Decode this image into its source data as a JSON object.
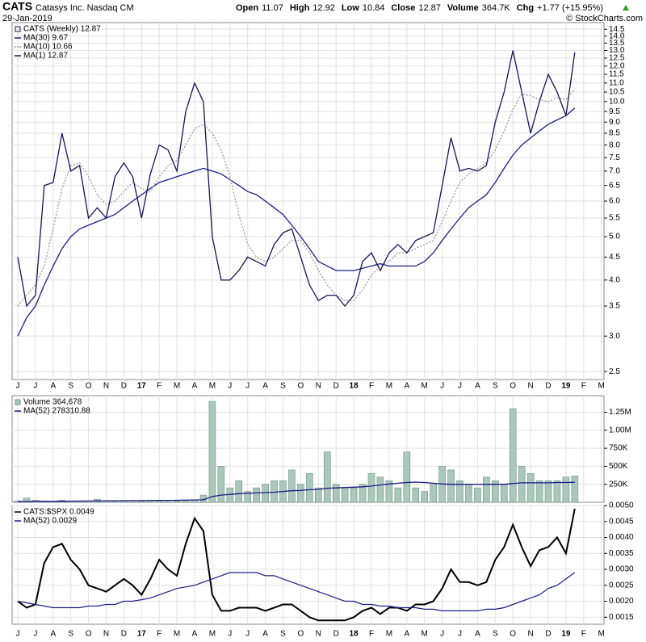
{
  "chart_data": [
    {
      "type": "line",
      "scale": "log",
      "title": "CATS",
      "subtitle": "Catasys Inc. Nasdaq CM",
      "date": "29-Jan-2019",
      "quote": [
        {
          "label": "Open",
          "value": "11.07"
        },
        {
          "label": "High",
          "value": "12.92"
        },
        {
          "label": "Low",
          "value": "10.84"
        },
        {
          "label": "Close",
          "value": "12.87"
        },
        {
          "label": "Volume",
          "value": "364.7K"
        },
        {
          "label": "Chg",
          "value": "+1.77 (+15.95%)"
        }
      ],
      "copyright": "© StockCharts.com",
      "legend_label": "CATS (Weekly) 12.87",
      "categories": [
        "J",
        null,
        "J",
        null,
        "A",
        null,
        "S",
        null,
        "O",
        null,
        "N",
        null,
        "D",
        null,
        "17",
        null,
        "F",
        null,
        "M",
        null,
        "A",
        null,
        "M",
        null,
        "J",
        null,
        "J",
        null,
        "A",
        null,
        "S",
        null,
        "O",
        null,
        "N",
        null,
        "D",
        null,
        "18",
        null,
        "F",
        null,
        "M",
        null,
        "A",
        null,
        "M",
        null,
        "J",
        null,
        "J",
        null,
        "A",
        null,
        "S",
        null,
        "O",
        null,
        "N",
        null,
        "D",
        null,
        "19",
        null,
        "F",
        null,
        "M",
        null
      ],
      "ylim": [
        2.4,
        15
      ],
      "yticks": [
        2.5,
        {
          "value": 3,
          "label": "3.0"
        },
        3.5,
        {
          "value": 4,
          "label": "4.0"
        },
        4.5,
        {
          "value": 5,
          "label": "5.0"
        },
        5.5,
        {
          "value": 6,
          "label": "6.0"
        },
        6.5,
        {
          "value": 7,
          "label": "7.0"
        },
        7.5,
        {
          "value": 8,
          "label": "8.0"
        },
        8.5,
        {
          "value": 9,
          "label": "9.0"
        },
        9.5,
        {
          "value": 10,
          "label": "10.0"
        },
        10.5,
        {
          "value": 11,
          "label": "11.0"
        },
        11.5,
        {
          "value": 12,
          "label": "12.0"
        },
        12.5,
        {
          "value": 13,
          "label": "13.0"
        },
        13.5,
        {
          "value": 14,
          "label": "14.0"
        },
        14.5
      ],
      "grid": true,
      "series": [
        {
          "name": "MA(30) 9.67",
          "color": "#1c1c8a",
          "line_style": "solid",
          "values": [
            3.0,
            3.3,
            3.5,
            3.9,
            4.3,
            4.7,
            5.0,
            5.2,
            5.3,
            5.4,
            5.5,
            5.6,
            5.8,
            6.0,
            6.2,
            6.4,
            6.6,
            6.7,
            6.8,
            6.9,
            7.0,
            7.1,
            7.0,
            6.9,
            6.7,
            6.5,
            6.3,
            6.2,
            6.0,
            5.8,
            5.6,
            5.3,
            5.0,
            4.7,
            4.4,
            4.3,
            4.2,
            4.2,
            4.2,
            4.25,
            4.3,
            4.35,
            4.3,
            4.3,
            4.3,
            4.3,
            4.4,
            4.6,
            4.9,
            5.2,
            5.5,
            5.8,
            6.0,
            6.2,
            6.6,
            7.1,
            7.6,
            8.0,
            8.3,
            8.6,
            8.9,
            9.1,
            9.3,
            9.67,
            null,
            null,
            null,
            null
          ]
        },
        {
          "name": "MA(10) 10.66",
          "color": "#999999",
          "line_style": "dotted",
          "values": [
            3.5,
            3.7,
            3.9,
            4.3,
            5.2,
            6.4,
            7.2,
            7.3,
            6.8,
            6.2,
            5.9,
            6.0,
            6.3,
            6.6,
            6.4,
            6.3,
            6.8,
            7.2,
            7.4,
            8.0,
            8.7,
            8.9,
            8.5,
            7.8,
            6.8,
            5.6,
            4.8,
            4.5,
            4.4,
            4.5,
            4.7,
            4.9,
            4.9,
            4.6,
            4.2,
            3.9,
            3.7,
            3.6,
            3.6,
            3.8,
            4.1,
            4.3,
            4.4,
            4.6,
            4.6,
            4.7,
            4.8,
            4.9,
            5.4,
            6.0,
            6.6,
            6.9,
            7.1,
            7.3,
            7.8,
            8.6,
            9.6,
            10.4,
            10.3,
            10.1,
            10.0,
            10.2,
            10.1,
            10.66,
            null,
            null,
            null,
            null
          ]
        },
        {
          "name": "MA(1) 12.87",
          "color": "#14145c",
          "line_style": "solid",
          "values": [
            4.5,
            3.5,
            3.7,
            6.5,
            6.6,
            8.5,
            7.0,
            7.2,
            5.5,
            5.8,
            5.5,
            6.8,
            7.3,
            6.8,
            5.5,
            6.9,
            8.0,
            7.8,
            7.0,
            9.5,
            11.0,
            10.0,
            5.0,
            4.0,
            4.0,
            4.2,
            4.5,
            4.4,
            4.3,
            4.8,
            5.1,
            5.2,
            4.5,
            3.9,
            3.6,
            3.7,
            3.7,
            3.5,
            3.7,
            4.4,
            4.6,
            4.2,
            4.6,
            4.8,
            4.6,
            4.9,
            5.0,
            5.1,
            6.5,
            8.3,
            7.0,
            7.1,
            7.0,
            7.2,
            9.0,
            10.5,
            13.0,
            10.5,
            8.5,
            10.0,
            11.5,
            10.5,
            9.3,
            12.87,
            null,
            null,
            null,
            null
          ]
        }
      ]
    },
    {
      "type": "bar",
      "ylim": [
        0,
        1480000
      ],
      "yticks": [
        {
          "value": 250000,
          "label": "250K"
        },
        {
          "value": 500000,
          "label": "500K"
        },
        {
          "value": 750000,
          "label": "750K"
        },
        {
          "value": 1000000,
          "label": "1.00M"
        },
        {
          "value": 1250000,
          "label": "1.25M"
        }
      ],
      "grid": true,
      "series": [
        {
          "name": "Volume 364,678",
          "type": "bar",
          "color": "#a9c7bb",
          "values": [
            20000,
            60000,
            30000,
            20000,
            15000,
            30000,
            20000,
            20000,
            15000,
            40000,
            20000,
            15000,
            15000,
            20000,
            15000,
            20000,
            20000,
            30000,
            20000,
            30000,
            30000,
            100000,
            1400000,
            500000,
            200000,
            300000,
            150000,
            200000,
            250000,
            300000,
            300000,
            450000,
            250000,
            400000,
            200000,
            700000,
            250000,
            200000,
            200000,
            250000,
            400000,
            350000,
            300000,
            200000,
            700000,
            200000,
            150000,
            250000,
            500000,
            450000,
            300000,
            250000,
            200000,
            350000,
            300000,
            250000,
            1300000,
            500000,
            400000,
            300000,
            300000,
            300000,
            350000,
            364678,
            null,
            null,
            null,
            null
          ]
        },
        {
          "name": "MA(52) 278310.88",
          "type": "line",
          "color": "#1c1c8a",
          "values": [
            10000,
            10000,
            12000,
            13000,
            14000,
            15000,
            16000,
            17000,
            18000,
            19000,
            20000,
            21000,
            22000,
            23000,
            24000,
            25000,
            26000,
            27000,
            28000,
            30000,
            32000,
            35000,
            80000,
            100000,
            110000,
            120000,
            125000,
            130000,
            135000,
            140000,
            150000,
            160000,
            165000,
            175000,
            180000,
            195000,
            200000,
            205000,
            210000,
            215000,
            225000,
            240000,
            255000,
            265000,
            275000,
            280000,
            275000,
            265000,
            255000,
            250000,
            250000,
            250000,
            250000,
            250000,
            250000,
            250000,
            260000,
            270000,
            270000,
            270000,
            270000,
            275000,
            275000,
            278310.88,
            null,
            null,
            null,
            null
          ]
        }
      ]
    },
    {
      "type": "line",
      "ylim": [
        0.00128,
        0.005
      ],
      "categories": [
        "J",
        null,
        "J",
        null,
        "A",
        null,
        "S",
        null,
        "O",
        null,
        "N",
        null,
        "D",
        null,
        "17",
        null,
        "F",
        null,
        "M",
        null,
        "A",
        null,
        "M",
        null,
        "J",
        null,
        "J",
        null,
        "A",
        null,
        "S",
        null,
        "O",
        null,
        "N",
        null,
        "D",
        null,
        "18",
        null,
        "F",
        null,
        "M",
        null,
        "A",
        null,
        "M",
        null,
        "J",
        null,
        "J",
        null,
        "A",
        null,
        "S",
        null,
        "O",
        null,
        "N",
        null,
        "D",
        null,
        "19",
        null,
        "F",
        null,
        "M",
        null
      ],
      "yticks": [
        0.0015,
        {
          "value": 0.002,
          "label": "0.0020"
        },
        0.0025,
        {
          "value": 0.003,
          "label": "0.0030"
        },
        0.0035,
        {
          "value": 0.004,
          "label": "0.0040"
        },
        0.0045,
        {
          "value": 0.005,
          "label": "0.0050"
        }
      ],
      "grid": true,
      "series": [
        {
          "name": "CATS:$SPX 0.0049",
          "color": "#000000",
          "width": 2,
          "values": [
            0.002,
            0.0018,
            0.0019,
            0.0032,
            0.0037,
            0.0038,
            0.0033,
            0.003,
            0.0025,
            0.0024,
            0.0023,
            0.0025,
            0.0027,
            0.0025,
            0.0022,
            0.0027,
            0.0033,
            0.003,
            0.0028,
            0.0038,
            0.0046,
            0.0042,
            0.0022,
            0.0017,
            0.0017,
            0.0018,
            0.0018,
            0.0018,
            0.0017,
            0.0018,
            0.0019,
            0.0019,
            0.0017,
            0.0015,
            0.0014,
            0.0014,
            0.0014,
            0.0014,
            0.0015,
            0.0017,
            0.0018,
            0.0016,
            0.0018,
            0.0018,
            0.0017,
            0.0019,
            0.0019,
            0.002,
            0.0024,
            0.003,
            0.0026,
            0.0026,
            0.0025,
            0.0026,
            0.0033,
            0.0037,
            0.0044,
            0.0037,
            0.0031,
            0.0036,
            0.0037,
            0.004,
            0.0035,
            0.0049,
            null,
            null,
            null,
            null
          ]
        },
        {
          "name": "MA(52) 0.0029",
          "color": "#1c1c8a",
          "width": 1.2,
          "values": [
            0.002,
            0.00195,
            0.0019,
            0.00185,
            0.0018,
            0.0018,
            0.0018,
            0.0018,
            0.00185,
            0.00185,
            0.0019,
            0.0019,
            0.002,
            0.002,
            0.00205,
            0.0021,
            0.0022,
            0.0023,
            0.0024,
            0.00245,
            0.0025,
            0.0026,
            0.0027,
            0.0028,
            0.0029,
            0.0029,
            0.0029,
            0.0029,
            0.0028,
            0.0028,
            0.0027,
            0.0026,
            0.0025,
            0.0024,
            0.0023,
            0.0022,
            0.0021,
            0.002,
            0.002,
            0.0019,
            0.0019,
            0.00185,
            0.00185,
            0.0018,
            0.0018,
            0.0018,
            0.00175,
            0.00175,
            0.0017,
            0.0017,
            0.0017,
            0.0017,
            0.0017,
            0.00175,
            0.00175,
            0.0018,
            0.0019,
            0.002,
            0.0021,
            0.0022,
            0.0024,
            0.0025,
            0.0027,
            0.0029,
            null,
            null,
            null,
            null
          ]
        }
      ]
    }
  ]
}
